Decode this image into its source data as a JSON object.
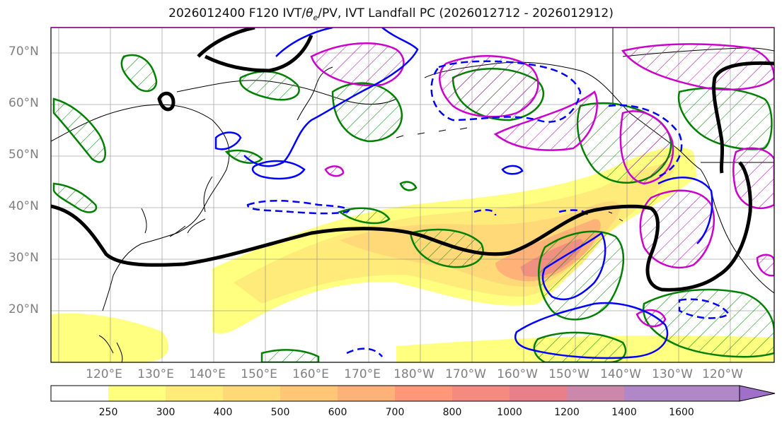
{
  "title": {
    "prefix": "2026012400 F120 IVT/",
    "theta": "θ",
    "theta_sub": "e",
    "suffix": "/PV, IVT Landfall PC (2026012712 - 2026012912)"
  },
  "axes": {
    "lat_labels": [
      "70°N",
      "60°N",
      "50°N",
      "40°N",
      "30°N",
      "20°N"
    ],
    "lon_labels": [
      "120°E",
      "130°E",
      "140°E",
      "150°E",
      "160°E",
      "170°E",
      "180°W",
      "170°W",
      "160°W",
      "150°W",
      "140°W",
      "130°W",
      "120°W"
    ],
    "grid": true
  },
  "colorbar": {
    "labels": [
      "250",
      "300",
      "400",
      "500",
      "600",
      "700",
      "800",
      "1000",
      "1200",
      "1400",
      "1600"
    ],
    "colors": [
      "#ffffff",
      "#ffff80",
      "#ffeb7a",
      "#ffd878",
      "#ffc678",
      "#ffb278",
      "#ff9878",
      "#f58a80",
      "#e8808a",
      "#cc88aa",
      "#b088c8"
    ],
    "extend": "max"
  },
  "colors": {
    "pv_contour": "#008000",
    "theta_contour_pos": "#cc00cc",
    "theta_contour_neg": "#0000ff",
    "ivt_mean": "#000000",
    "coastline": "#000000"
  }
}
